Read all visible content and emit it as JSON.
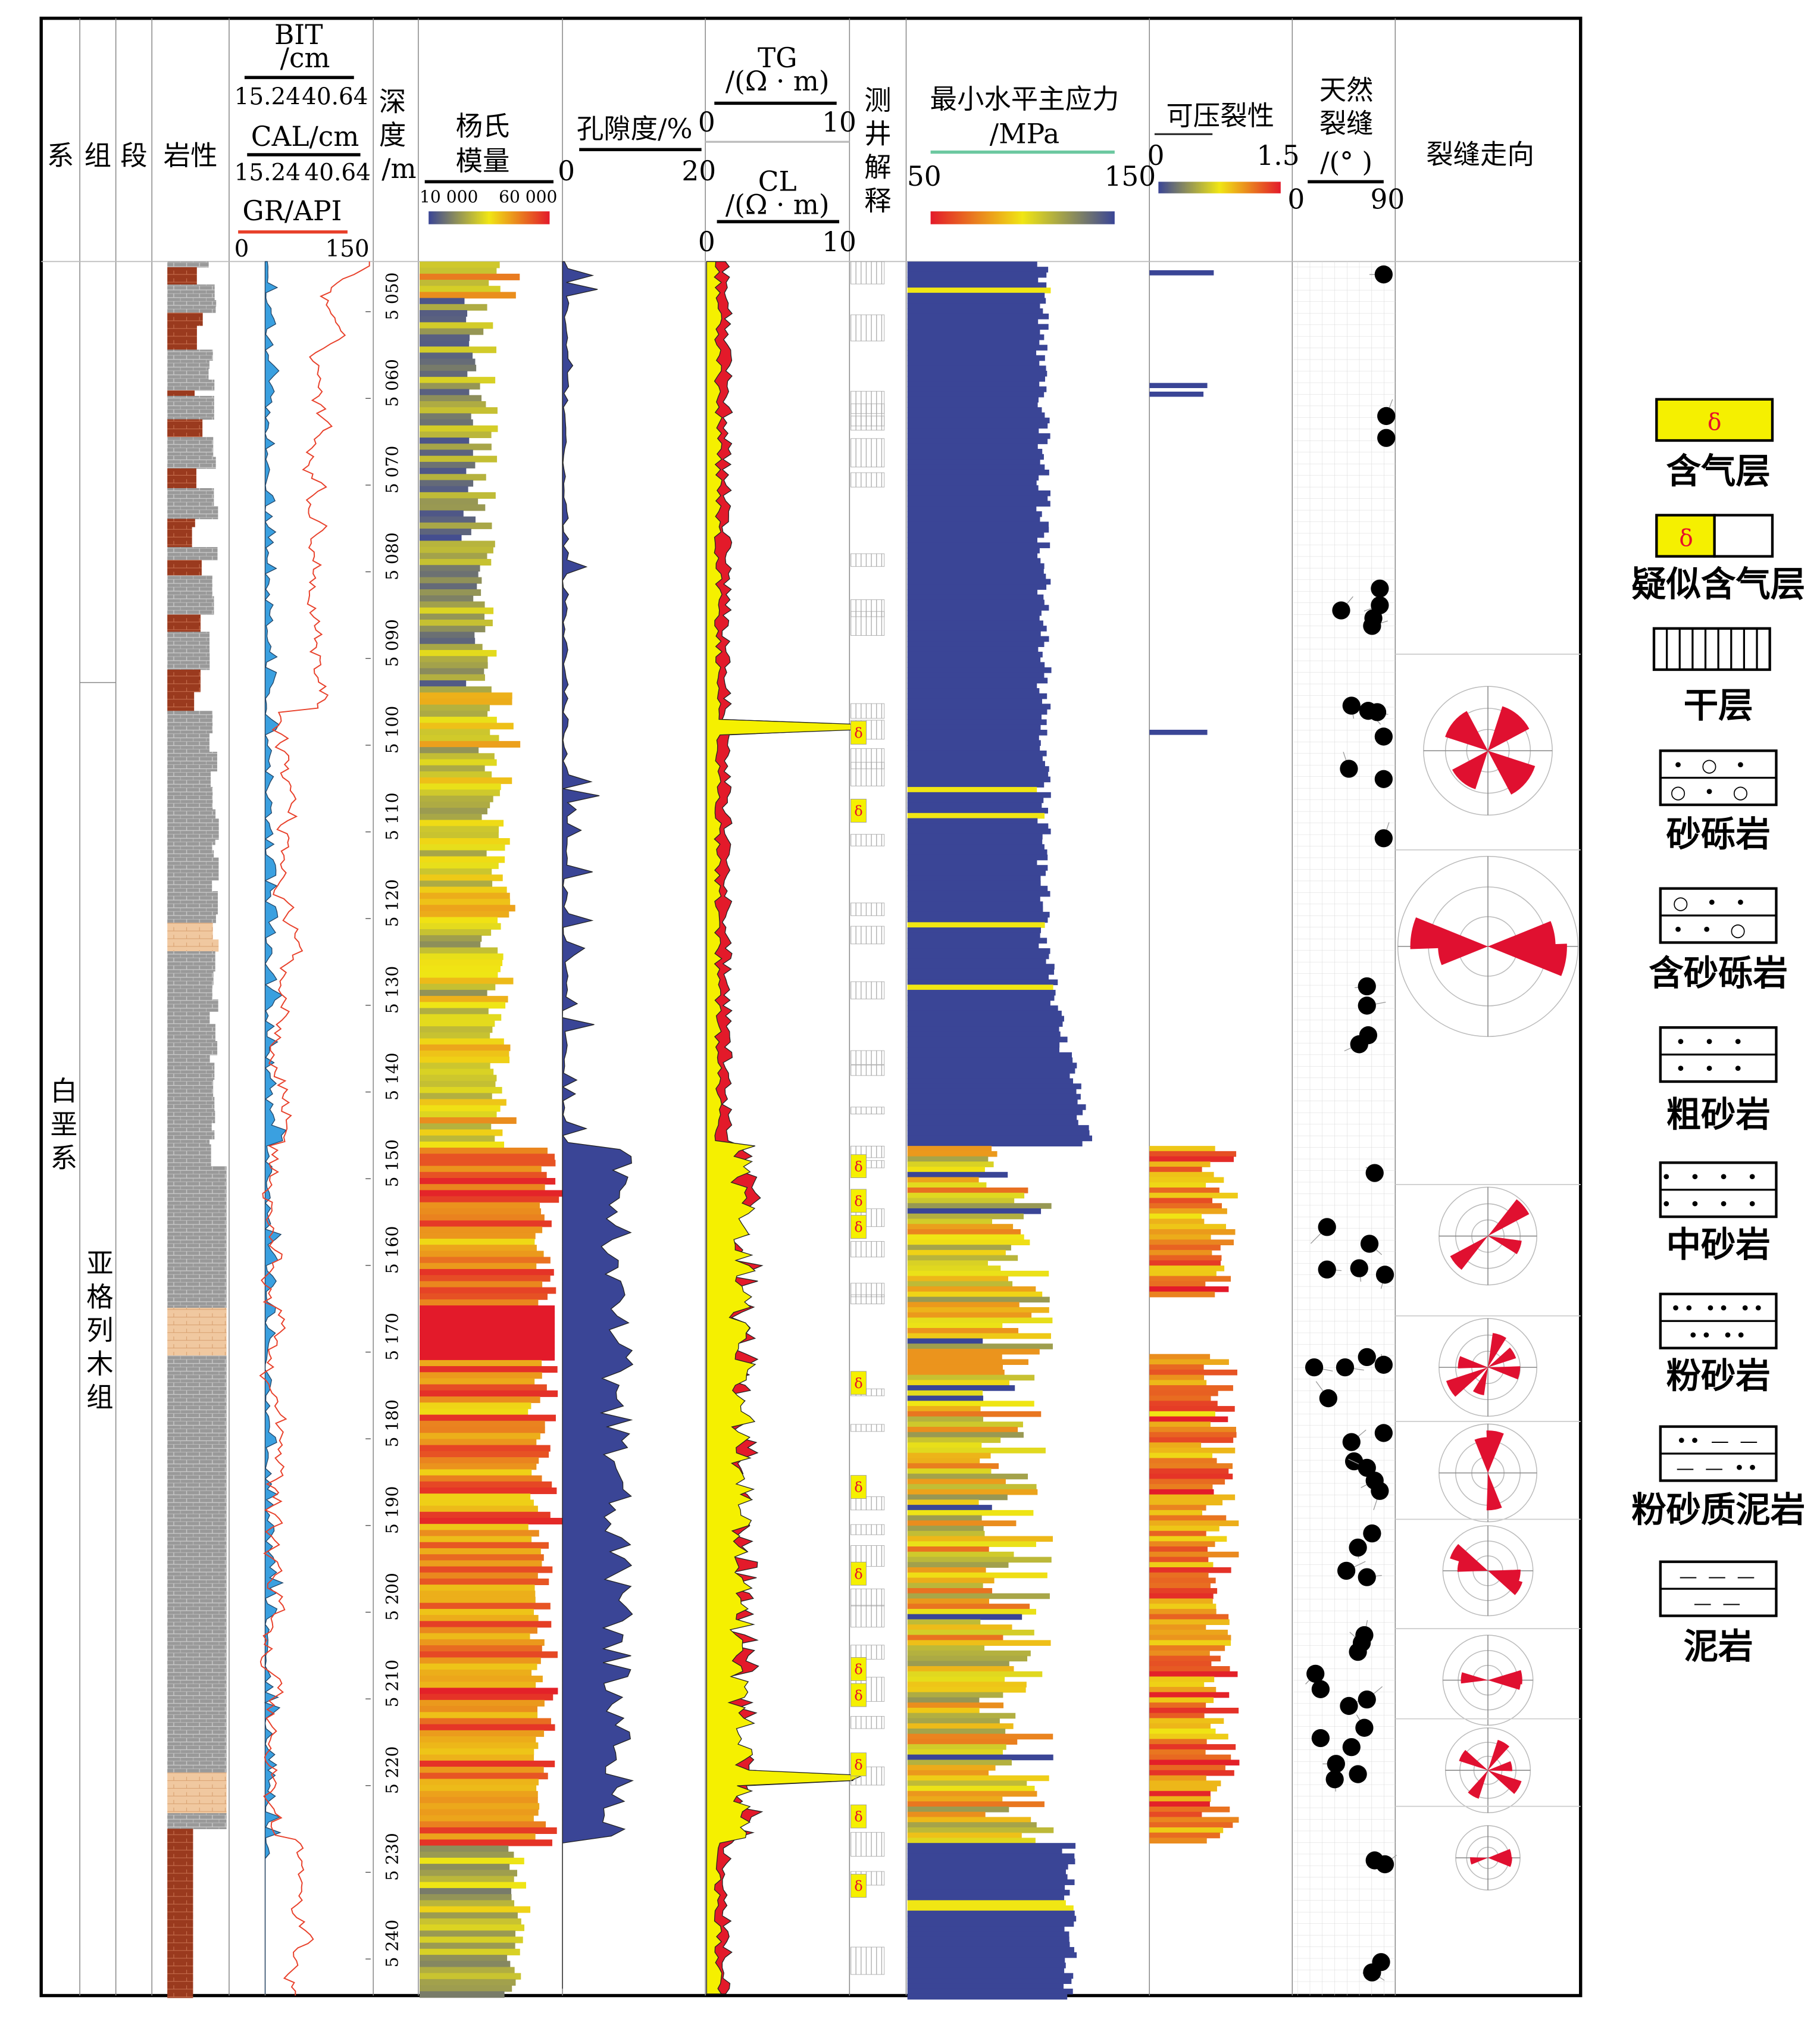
{
  "headers": {
    "system": "系",
    "formation": "组",
    "member": "段",
    "lithology": "岩性",
    "bit": {
      "name": "BIT",
      "unit": "/cm",
      "min": "15.24",
      "max": "40.64"
    },
    "cal": {
      "name": "CAL/cm",
      "min": "15.24",
      "max": "40.64"
    },
    "gr": {
      "name": "GR/API",
      "min": "0",
      "max": "150"
    },
    "depth": {
      "c1": "深",
      "c2": "度",
      "unit": "/m"
    },
    "youngs": {
      "l1": "杨氏",
      "l2": "模量",
      "min": "10 000",
      "max": "60 000"
    },
    "porosity": {
      "name": "孔隙度/%",
      "min": "0",
      "max": "20"
    },
    "tg": {
      "name": "TG",
      "unit": "/(Ω · m)",
      "min": "0",
      "max": "10"
    },
    "cl": {
      "name": "CL",
      "unit": "/(Ω · m)",
      "min": "0",
      "max": "10"
    },
    "interp": [
      "测",
      "井",
      "解",
      "释"
    ],
    "stress": {
      "name": "最小水平主应力",
      "unit": "/MPa",
      "min": "50",
      "max": "150"
    },
    "fracability": {
      "name": "可压裂性",
      "min": "0",
      "max": "1.5"
    },
    "natural_fracture": {
      "l1": "天然",
      "l2": "裂缝",
      "unit": "/(° )",
      "min": "0",
      "max": "90"
    },
    "strike": "裂缝走向"
  },
  "strat": {
    "system": "白垩系",
    "formation": "亚格列木组"
  },
  "depth_ticks": [
    "5 050",
    "5 060",
    "5 070",
    "5 080",
    "5 090",
    "5 100",
    "5 110",
    "5 120",
    "5 130",
    "5 140",
    "5 150",
    "5 160",
    "5 170",
    "5 180",
    "5 190",
    "5 200",
    "5 210",
    "5 220",
    "5 230",
    "5 240"
  ],
  "legend": [
    {
      "label": "含气层",
      "pattern": "gas"
    },
    {
      "label": "疑似含气层",
      "pattern": "suspected-gas"
    },
    {
      "label": "干层",
      "pattern": "dry"
    },
    {
      "label": "砂砾岩",
      "pattern": "sandy-conglomerate"
    },
    {
      "label": "含砂砾岩",
      "pattern": "pebbly-sandstone"
    },
    {
      "label": "粗砂岩",
      "pattern": "coarse-sandstone"
    },
    {
      "label": "中砂岩",
      "pattern": "medium-sandstone"
    },
    {
      "label": "粉砂岩",
      "pattern": "siltstone"
    },
    {
      "label": "粉砂质泥岩",
      "pattern": "silty-mudstone"
    },
    {
      "label": "泥岩",
      "pattern": "mudstone"
    }
  ],
  "colors": {
    "gas": "#f5f000",
    "gas_symbol": "#e8102a",
    "low": "#3a4596",
    "mid": "#f0e614",
    "high": "#e31a2a",
    "gr": "#e8402a",
    "cal": "#3aa0e0",
    "stress_line": "#6cc8a0"
  }
}
